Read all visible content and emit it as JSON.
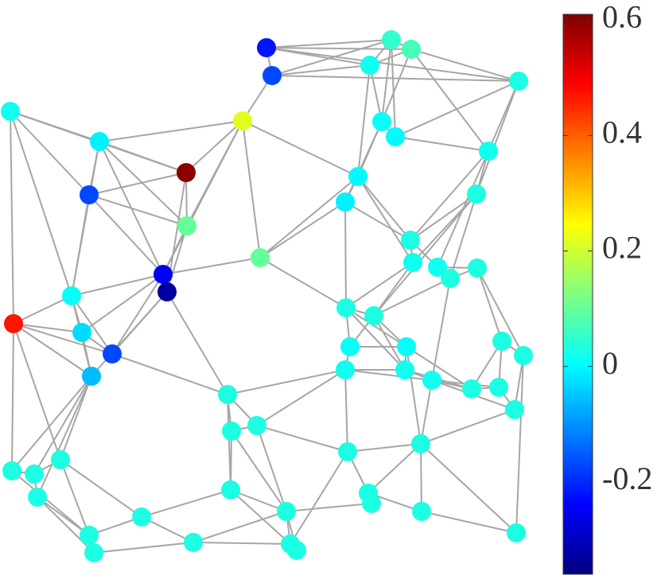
{
  "chart_data": {
    "type": "graph",
    "colormap": "jet",
    "clim": [
      -0.36,
      0.61
    ],
    "cticks": [
      -0.2,
      0,
      0.2,
      0.4,
      0.6
    ],
    "values": [
      -0.22,
      -0.17,
      0.05,
      0.07,
      0.02,
      0.03,
      0.02,
      0.22,
      0.01,
      0.0,
      -0.01,
      0.02,
      0.6,
      0.0,
      -0.17,
      -0.01,
      0.03,
      0.1,
      0.1,
      0.03,
      0.02,
      0.02,
      0.03,
      0.03,
      -0.25,
      -0.33,
      0.01,
      0.47,
      0.03,
      0.03,
      -0.03,
      0.03,
      0.01,
      0.01,
      0.03,
      -0.17,
      0.02,
      0.02,
      0.02,
      -0.06,
      0.03,
      0.03,
      0.03,
      0.03,
      0.03,
      0.03,
      0.03,
      0.03,
      0.03,
      0.03,
      0.03,
      0.03,
      0.03,
      0.03,
      0.03,
      0.03,
      0.03,
      0.03,
      0.03,
      0.03,
      0.03,
      0.03,
      0.03,
      0.03
    ]
  }
}
